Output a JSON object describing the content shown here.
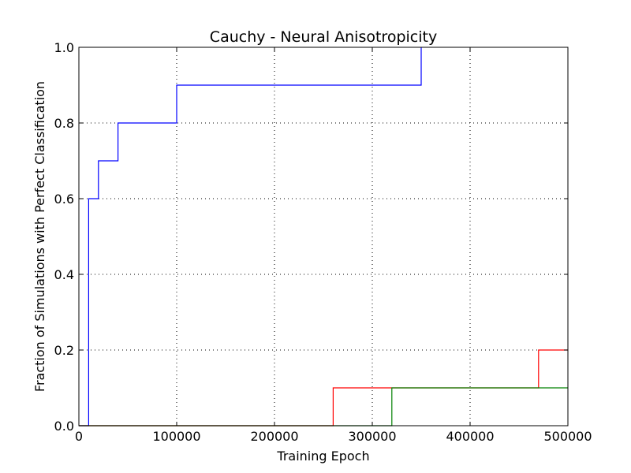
{
  "chart_data": {
    "type": "line",
    "step": "post",
    "title": "Cauchy - Neural Anisotropicity",
    "xlabel": "Training Epoch",
    "ylabel": "Fraction of Simulations with Perfect Classification",
    "xlim": [
      0,
      500000
    ],
    "ylim": [
      0.0,
      1.0
    ],
    "xticks": [
      0,
      100000,
      200000,
      300000,
      400000,
      500000
    ],
    "xtick_labels": [
      "0",
      "100000",
      "200000",
      "300000",
      "400000",
      "500000"
    ],
    "yticks": [
      0.0,
      0.2,
      0.4,
      0.6,
      0.8,
      1.0
    ],
    "ytick_labels": [
      "0.0",
      "0.2",
      "0.4",
      "0.6",
      "0.8",
      "1.0"
    ],
    "grid": true,
    "series": [
      {
        "color": "#0000ff",
        "points": [
          [
            0,
            0.0
          ],
          [
            10000,
            0.6
          ],
          [
            20000,
            0.7
          ],
          [
            40000,
            0.8
          ],
          [
            100000,
            0.9
          ],
          [
            350000,
            1.0
          ]
        ]
      },
      {
        "color": "#ff0000",
        "points": [
          [
            0,
            0.0
          ],
          [
            260000,
            0.1
          ],
          [
            470000,
            0.2
          ],
          [
            500000,
            0.2
          ]
        ]
      },
      {
        "color": "#008000",
        "points": [
          [
            0,
            0.0
          ],
          [
            320000,
            0.1
          ],
          [
            500000,
            0.1
          ]
        ]
      }
    ]
  }
}
